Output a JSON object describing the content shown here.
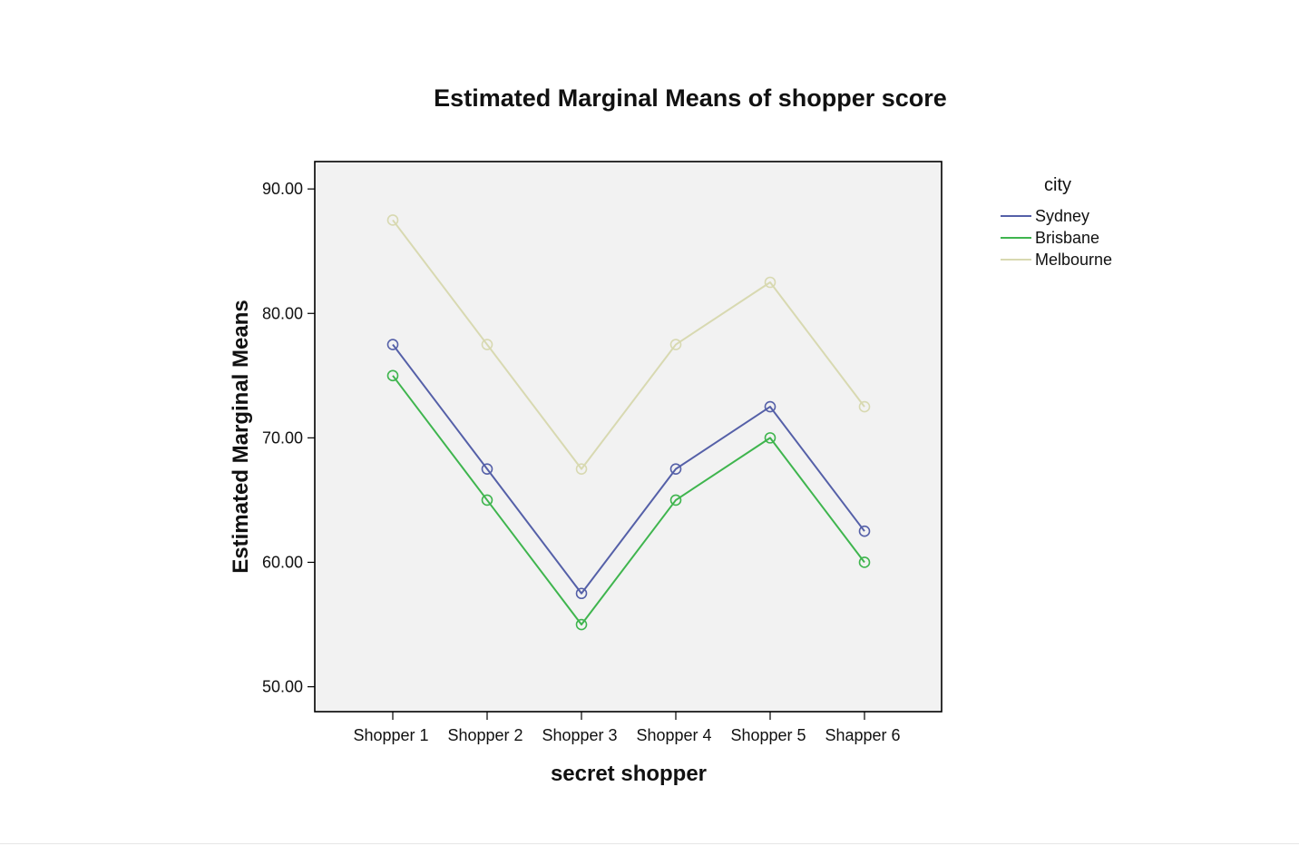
{
  "chart_data": {
    "type": "line",
    "title": "Estimated Marginal Means of shopper score",
    "xlabel": "secret shopper",
    "ylabel": "Estimated Marginal Means",
    "categories": [
      "Shopper 1",
      "Shopper 2",
      "Shopper 3",
      "Shopper 4",
      "Shopper 5",
      "Shapper 6"
    ],
    "yticks": [
      "50.00",
      "60.00",
      "70.00",
      "80.00",
      "90.00"
    ],
    "ylim": [
      48,
      92.2
    ],
    "grid": false,
    "markers": "open-circle",
    "legend": {
      "title": "city",
      "placement": "right"
    },
    "plot_background": "#f2f2f2",
    "series": [
      {
        "name": "Sydney",
        "color": "#5560a8",
        "values": [
          77.5,
          67.5,
          57.5,
          67.5,
          72.5,
          62.5
        ]
      },
      {
        "name": "Brisbane",
        "color": "#3fb54e",
        "values": [
          75.0,
          65.0,
          55.0,
          65.0,
          70.0,
          60.0
        ]
      },
      {
        "name": "Melbourne",
        "color": "#d8d9b1",
        "values": [
          87.5,
          77.5,
          67.5,
          77.5,
          82.5,
          72.5
        ]
      }
    ]
  }
}
